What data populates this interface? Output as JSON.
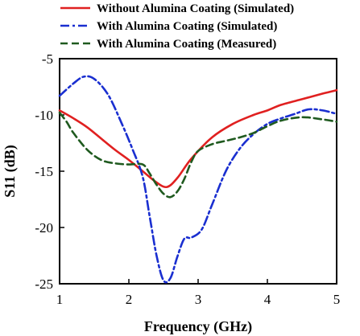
{
  "chart_data": {
    "type": "line",
    "title": "",
    "xlabel": "Frequency (GHz)",
    "ylabel": "S11 (dB)",
    "xlim": [
      1,
      5
    ],
    "ylim": [
      -25,
      -5
    ],
    "xticks": [
      1,
      2,
      3,
      4,
      5
    ],
    "yticks": [
      -5,
      -10,
      -15,
      -20,
      -25
    ],
    "grid": false,
    "legend_position": "top-right",
    "series": [
      {
        "name": "Without Alumina Coating (Simulated)",
        "color": "#e02020",
        "dash": "solid",
        "x": [
          1.0,
          1.2,
          1.4,
          1.6,
          1.8,
          2.0,
          2.2,
          2.4,
          2.55,
          2.7,
          2.9,
          3.2,
          3.5,
          3.8,
          4.0,
          4.2,
          4.5,
          4.8,
          5.0
        ],
        "y": [
          -9.6,
          -10.3,
          -11.1,
          -12.1,
          -13.1,
          -14.0,
          -15.0,
          -16.0,
          -16.4,
          -15.6,
          -13.9,
          -12.0,
          -10.8,
          -10.0,
          -9.6,
          -9.1,
          -8.6,
          -8.1,
          -7.8
        ]
      },
      {
        "name": "With Alumina Coating (Simulated)",
        "color": "#1a2fd0",
        "dash": "dashdot",
        "x": [
          1.0,
          1.2,
          1.35,
          1.5,
          1.7,
          1.9,
          2.05,
          2.2,
          2.3,
          2.4,
          2.5,
          2.6,
          2.7,
          2.8,
          2.9,
          3.05,
          3.2,
          3.4,
          3.6,
          3.8,
          4.0,
          4.2,
          4.4,
          4.6,
          4.8,
          5.0
        ],
        "y": [
          -8.3,
          -7.2,
          -6.6,
          -6.8,
          -8.2,
          -10.8,
          -13.0,
          -15.5,
          -19.0,
          -22.5,
          -24.7,
          -24.5,
          -22.6,
          -21.0,
          -20.9,
          -20.2,
          -18.0,
          -15.0,
          -13.0,
          -11.7,
          -10.8,
          -10.3,
          -9.9,
          -9.5,
          -9.6,
          -9.9
        ]
      },
      {
        "name": "With Alumina Coating (Measured)",
        "color": "#1f5a1f",
        "dash": "dashed",
        "x": [
          1.0,
          1.1,
          1.2,
          1.4,
          1.6,
          1.8,
          2.0,
          2.2,
          2.3,
          2.4,
          2.5,
          2.6,
          2.7,
          2.8,
          2.9,
          3.0,
          3.2,
          3.4,
          3.6,
          3.8,
          4.0,
          4.2,
          4.5,
          4.8,
          5.0
        ],
        "y": [
          -9.8,
          -10.6,
          -11.6,
          -13.1,
          -14.0,
          -14.3,
          -14.4,
          -14.4,
          -15.2,
          -16.2,
          -17.0,
          -17.3,
          -16.8,
          -15.7,
          -14.2,
          -13.2,
          -12.6,
          -12.3,
          -12.0,
          -11.6,
          -11.0,
          -10.5,
          -10.2,
          -10.4,
          -10.6
        ]
      }
    ]
  }
}
